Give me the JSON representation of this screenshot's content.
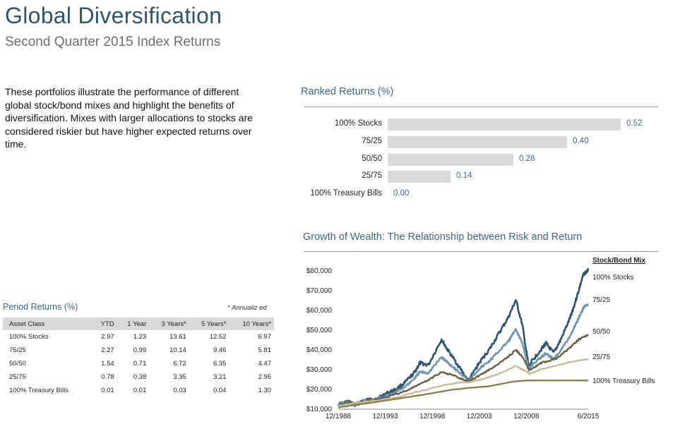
{
  "header": {
    "title": "Global Diversification",
    "subtitle": "Second Quarter 2015 Index Returns"
  },
  "intro_text": "These portfolios illustrate the performance of different global stock/bond mixes and highlight the benefits of diversification. Mixes with larger allocations to stocks are considered riskier but have higher expected returns over time.",
  "ranked_returns": {
    "title": "Ranked Returns (%)",
    "bar_color": "#d9d9d9",
    "value_color": "#3e6785"
  },
  "period_returns": {
    "title": "Period Returns (%)",
    "note": "* Annualiz ed",
    "columns": [
      "Asset Class",
      "YTD",
      "1 Year",
      "3 Years*",
      "5 Years*",
      "10 Years*"
    ],
    "rows": [
      [
        "100% Stocks",
        "2.97",
        "1.23",
        "13.61",
        "12.52",
        "6.97"
      ],
      [
        "75/25",
        "2.27",
        "0.99",
        "10.14",
        "9.46",
        "5.81"
      ],
      [
        "50/50",
        "1.54",
        "0.71",
        "6.72",
        "6.35",
        "4.47"
      ],
      [
        "25/75",
        "0.78",
        "0.38",
        "3.35",
        "3.21",
        "2.96"
      ],
      [
        "100% Treasury Bills",
        "0.01",
        "0.01",
        "0.03",
        "0.04",
        "1.30"
      ]
    ]
  },
  "growth_title": "Growth of Wealth: The Relationship between Risk and Return",
  "chart_data": [
    {
      "type": "bar",
      "orientation": "horizontal",
      "title": "Ranked Returns (%)",
      "categories": [
        "100% Stocks",
        "75/25",
        "50/50",
        "25/75",
        "100% Treasury Bills"
      ],
      "values": [
        0.52,
        0.4,
        0.28,
        0.14,
        0.0
      ],
      "value_labels": [
        "0.52",
        "0.40",
        "0.28",
        "0.14",
        "0.00"
      ],
      "xlim": [
        0,
        0.52
      ]
    },
    {
      "type": "line",
      "title": "Growth of Wealth: The Relationship between Risk and Return",
      "legend_title": "Stock/Bond Mix",
      "x_ticks": [
        "12/1988",
        "12/1993",
        "12/1998",
        "12/2003",
        "12/2008",
        "6/2015"
      ],
      "y_ticks": [
        "$10,000",
        "$20,000",
        "$30,000",
        "$40,000",
        "$50,000",
        "$60,000",
        "$70,000",
        "$80,000"
      ],
      "ylim": [
        10000,
        80000
      ],
      "xlim": [
        1988.92,
        2015.5
      ],
      "series": [
        {
          "name": "100% Stocks",
          "color": "#2e5470",
          "x": [
            1988.92,
            1990.0,
            1990.7,
            1991.5,
            1993.0,
            1994.0,
            1995.0,
            1996.0,
            1997.0,
            1997.6,
            1998.5,
            1999.9,
            2000.5,
            2001.5,
            2002.75,
            2003.9,
            2005.0,
            2006.0,
            2007.0,
            2007.8,
            2008.5,
            2009.2,
            2009.5,
            2010.5,
            2011.0,
            2011.8,
            2012.5,
            2013.5,
            2014.0,
            2014.5,
            2015.0,
            2015.5
          ],
          "y": [
            12000,
            13500,
            11500,
            14000,
            15000,
            17500,
            19500,
            23000,
            28000,
            33000,
            32000,
            45000,
            40000,
            33000,
            24000,
            33000,
            40000,
            48000,
            56000,
            65000,
            52000,
            30000,
            34000,
            40000,
            43000,
            38000,
            44000,
            55000,
            62000,
            70000,
            78000,
            80000
          ]
        },
        {
          "name": "75/25",
          "color": "#6f96ad",
          "x": [
            1988.92,
            1990.0,
            1990.7,
            1991.5,
            1993.0,
            1994.0,
            1995.0,
            1996.0,
            1997.0,
            1997.6,
            1998.5,
            1999.9,
            2000.5,
            2001.5,
            2002.75,
            2003.9,
            2005.0,
            2006.0,
            2007.0,
            2007.8,
            2008.5,
            2009.2,
            2009.5,
            2010.5,
            2011.0,
            2011.8,
            2012.5,
            2013.5,
            2014.0,
            2014.5,
            2015.0,
            2015.5
          ],
          "y": [
            11800,
            13000,
            11800,
            13800,
            14800,
            16500,
            18000,
            21000,
            25000,
            28500,
            28000,
            36000,
            33500,
            29500,
            24000,
            30000,
            34000,
            39000,
            44000,
            50000,
            43000,
            29500,
            32000,
            36000,
            38000,
            35000,
            39000,
            46000,
            51000,
            56000,
            61000,
            63000
          ]
        },
        {
          "name": "50/50",
          "color": "#6b5d42",
          "x": [
            1988.92,
            1990.0,
            1991.0,
            1992.0,
            1994.0,
            1996.0,
            1998.0,
            1999.9,
            2001.0,
            2002.75,
            2004.0,
            2006.0,
            2007.8,
            2008.5,
            2009.2,
            2010.5,
            2012.0,
            2013.5,
            2014.5,
            2015.5
          ],
          "y": [
            11500,
            12800,
            12500,
            14000,
            15500,
            18800,
            23000,
            28500,
            27000,
            23500,
            27000,
            32500,
            39500,
            36500,
            29500,
            33000,
            35000,
            40500,
            45000,
            47500
          ]
        },
        {
          "name": "25/75",
          "color": "#c9bb95",
          "x": [
            1988.92,
            1990.0,
            1991.0,
            1993.0,
            1995.0,
            1997.0,
            1999.9,
            2001.5,
            2002.75,
            2004.0,
            2006.0,
            2007.8,
            2008.6,
            2009.3,
            2010.5,
            2012.0,
            2013.5,
            2015.5
          ],
          "y": [
            11200,
            12200,
            13000,
            14000,
            15500,
            18000,
            21500,
            23000,
            23300,
            24500,
            27500,
            31500,
            29500,
            27500,
            30000,
            31500,
            33500,
            35000
          ]
        },
        {
          "name": "100% Treasury Bills",
          "color": "#8a8158",
          "x": [
            1988.92,
            1991.0,
            1993.0,
            1995.0,
            1998.0,
            2001.0,
            2003.0,
            2005.0,
            2007.5,
            2009.0,
            2012.0,
            2015.5
          ],
          "y": [
            10500,
            12000,
            13300,
            14800,
            17000,
            19500,
            20500,
            21300,
            23600,
            24200,
            24200,
            24200
          ]
        }
      ]
    }
  ]
}
